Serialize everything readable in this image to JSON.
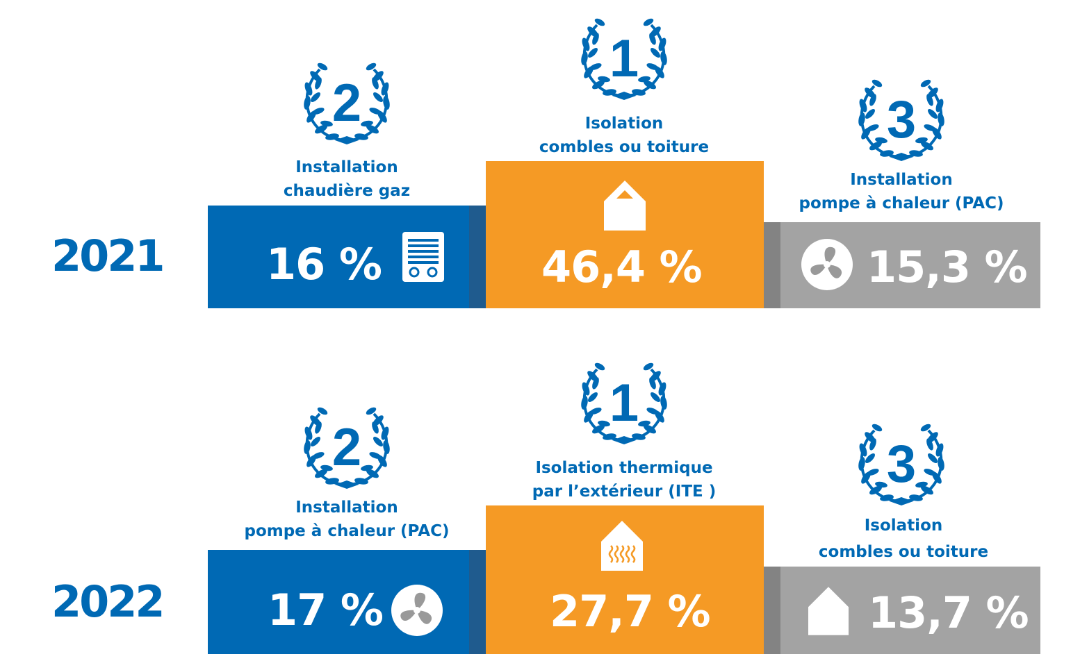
{
  "colors": {
    "blue": "#0069b4",
    "orange": "#f59a25",
    "gray": "#a3a3a3",
    "blue_dark": "#1f5b8e",
    "gray_dark": "#838383"
  },
  "rows": [
    {
      "year": "2021",
      "items": [
        {
          "rank": "2",
          "label_line1": "Installation",
          "label_line2": "chaudière gaz",
          "value": "16 %",
          "icon": "boiler-icon",
          "color": "blue"
        },
        {
          "rank": "1",
          "label_line1": "Isolation",
          "label_line2": "combles ou toiture",
          "value": "46,4 %",
          "icon": "house-roof-icon",
          "color": "orange"
        },
        {
          "rank": "3",
          "label_line1": "Installation",
          "label_line2": "pompe à chaleur (PAC)",
          "value": "15,3 %",
          "icon": "fan-icon",
          "color": "gray"
        }
      ]
    },
    {
      "year": "2022",
      "items": [
        {
          "rank": "2",
          "label_line1": "Installation",
          "label_line2": "pompe à chaleur (PAC)",
          "value": "17 %",
          "icon": "fan-icon",
          "color": "blue"
        },
        {
          "rank": "1",
          "label_line1": "Isolation thermique",
          "label_line2": "par l’extérieur (ITE )",
          "value": "27,7 %",
          "icon": "house-heat-icon",
          "color": "orange"
        },
        {
          "rank": "3",
          "label_line1": "Isolation",
          "label_line2": "combles ou toiture",
          "value": "13,7 %",
          "icon": "house-roof-icon",
          "color": "gray"
        }
      ]
    }
  ]
}
